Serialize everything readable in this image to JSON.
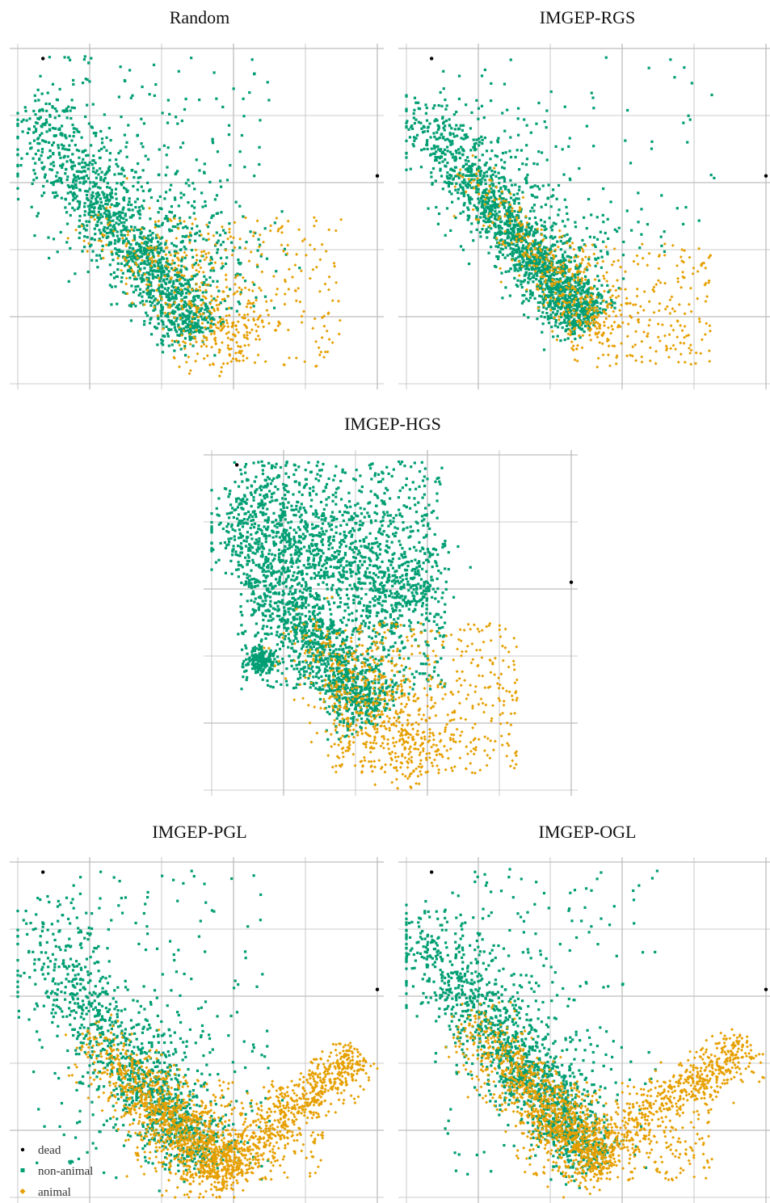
{
  "colors": {
    "dead": "#000000",
    "non_animal": "#009e73",
    "animal": "#e69f00",
    "grid": "#bdbdbd"
  },
  "legend": {
    "position": "bottom-left",
    "items": [
      {
        "key": "dead",
        "label": "dead"
      },
      {
        "key": "non_animal",
        "label": "non-animal"
      },
      {
        "key": "animal",
        "label": "animal"
      }
    ]
  },
  "chart_data": [
    {
      "type": "scatter",
      "title": "Random",
      "xlim": [
        0,
        1
      ],
      "ylim": [
        0,
        1
      ],
      "grid": true,
      "tick_labels": false,
      "series": [
        {
          "name": "dead",
          "points": [
            [
              0.07,
              0.97
            ],
            [
              1.0,
              0.62
            ]
          ]
        },
        {
          "name": "non-animal",
          "method": "clusters",
          "count": 1700,
          "clusters": [
            {
              "w": 0.62,
              "line": [
                [
                  0.0,
                  0.85
                ],
                [
                  0.5,
                  0.15
                ]
              ],
              "spread": 0.045,
              "bias": 0.55
            },
            {
              "w": 0.3,
              "line": [
                [
                  0.02,
                  0.84
                ],
                [
                  0.62,
                  0.25
                ]
              ],
              "spread": 0.1,
              "bias": 0.9
            },
            {
              "w": 0.08,
              "rect": [
                0.05,
                0.35,
                0.7,
                0.98
              ]
            }
          ]
        },
        {
          "name": "animal",
          "method": "clusters",
          "count": 550,
          "clusters": [
            {
              "w": 0.55,
              "line": [
                [
                  0.18,
                  0.55
                ],
                [
                  0.65,
                  0.1
                ]
              ],
              "spread": 0.06,
              "bias": 0.6
            },
            {
              "w": 0.45,
              "rect": [
                0.42,
                0.05,
                0.9,
                0.5
              ]
            }
          ]
        }
      ]
    },
    {
      "type": "scatter",
      "title": "IMGEP-RGS",
      "xlim": [
        0,
        1
      ],
      "ylim": [
        0,
        1
      ],
      "grid": true,
      "tick_labels": false,
      "series": [
        {
          "name": "dead",
          "points": [
            [
              0.07,
              0.97
            ],
            [
              1.0,
              0.62
            ]
          ]
        },
        {
          "name": "non-animal",
          "method": "clusters",
          "count": 1900,
          "clusters": [
            {
              "w": 0.75,
              "line": [
                [
                  0.0,
                  0.85
                ],
                [
                  0.5,
                  0.18
                ]
              ],
              "spread": 0.04,
              "bias": 0.5
            },
            {
              "w": 0.2,
              "line": [
                [
                  0.04,
                  0.83
                ],
                [
                  0.55,
                  0.28
                ]
              ],
              "spread": 0.08,
              "bias": 0.9
            },
            {
              "w": 0.05,
              "rect": [
                0.1,
                0.4,
                0.9,
                0.98
              ]
            }
          ]
        },
        {
          "name": "animal",
          "method": "clusters",
          "count": 600,
          "clusters": [
            {
              "w": 0.55,
              "line": [
                [
                  0.15,
                  0.65
                ],
                [
                  0.55,
                  0.15
                ]
              ],
              "spread": 0.04,
              "bias": 0.6
            },
            {
              "w": 0.45,
              "rect": [
                0.45,
                0.05,
                0.85,
                0.42
              ]
            }
          ]
        }
      ]
    },
    {
      "type": "scatter",
      "title": "IMGEP-HGS",
      "xlim": [
        0,
        1
      ],
      "ylim": [
        0,
        1
      ],
      "grid": true,
      "tick_labels": false,
      "series": [
        {
          "name": "dead",
          "points": [
            [
              0.07,
              0.97
            ],
            [
              1.0,
              0.62
            ]
          ]
        },
        {
          "name": "non-animal",
          "method": "clusters",
          "count": 3000,
          "clusters": [
            {
              "w": 0.35,
              "line": [
                [
                  0.0,
                  0.85
                ],
                [
                  0.45,
                  0.22
                ]
              ],
              "spread": 0.05,
              "bias": 0.5
            },
            {
              "w": 0.3,
              "line": [
                [
                  0.05,
                  0.87
                ],
                [
                  0.6,
                  0.55
                ]
              ],
              "spread": 0.08,
              "bias": 0.9
            },
            {
              "w": 0.3,
              "rect": [
                0.08,
                0.3,
                0.65,
                0.98
              ]
            },
            {
              "w": 0.05,
              "line": [
                [
                  0.13,
                  0.42
                ],
                [
                  0.15,
                  0.36
                ]
              ],
              "spread": 0.02,
              "bias": 1.0
            }
          ]
        },
        {
          "name": "animal",
          "method": "clusters",
          "count": 900,
          "clusters": [
            {
              "w": 0.5,
              "line": [
                [
                  0.2,
                  0.52
                ],
                [
                  0.6,
                  0.08
                ]
              ],
              "spread": 0.07,
              "bias": 0.6
            },
            {
              "w": 0.5,
              "rect": [
                0.33,
                0.05,
                0.85,
                0.5
              ]
            }
          ]
        }
      ]
    },
    {
      "type": "scatter",
      "title": "IMGEP-PGL",
      "xlim": [
        0,
        1
      ],
      "ylim": [
        0,
        1
      ],
      "grid": true,
      "tick_labels": false,
      "series": [
        {
          "name": "dead",
          "points": [
            [
              0.07,
              0.97
            ],
            [
              1.0,
              0.62
            ]
          ]
        },
        {
          "name": "non-animal",
          "method": "clusters",
          "count": 1300,
          "clusters": [
            {
              "w": 0.55,
              "line": [
                [
                  0.0,
                  0.85
                ],
                [
                  0.52,
                  0.1
                ]
              ],
              "spread": 0.05,
              "bias": 0.5
            },
            {
              "w": 0.3,
              "line": [
                [
                  0.02,
                  0.83
                ],
                [
                  0.5,
                  0.2
                ]
              ],
              "spread": 0.1,
              "bias": 0.9
            },
            {
              "w": 0.15,
              "rect": [
                0.05,
                0.05,
                0.7,
                0.98
              ]
            }
          ]
        },
        {
          "name": "animal",
          "method": "clusters",
          "count": 2000,
          "clusters": [
            {
              "w": 0.55,
              "line": [
                [
                  0.18,
                  0.5
                ],
                [
                  0.6,
                  0.05
                ]
              ],
              "spread": 0.05,
              "bias": 0.6
            },
            {
              "w": 0.3,
              "line": [
                [
                  0.55,
                  0.08
                ],
                [
                  0.95,
                  0.42
                ]
              ],
              "spread": 0.035,
              "bias": 0.7
            },
            {
              "w": 0.15,
              "rect": [
                0.3,
                0.05,
                0.85,
                0.35
              ]
            }
          ]
        }
      ]
    },
    {
      "type": "scatter",
      "title": "IMGEP-OGL",
      "xlim": [
        0,
        1
      ],
      "ylim": [
        0,
        1
      ],
      "grid": true,
      "tick_labels": false,
      "series": [
        {
          "name": "dead",
          "points": [
            [
              0.07,
              0.97
            ],
            [
              1.0,
              0.62
            ]
          ]
        },
        {
          "name": "non-animal",
          "method": "clusters",
          "count": 1600,
          "clusters": [
            {
              "w": 0.6,
              "line": [
                [
                  0.0,
                  0.85
                ],
                [
                  0.52,
                  0.1
                ]
              ],
              "spread": 0.045,
              "bias": 0.5
            },
            {
              "w": 0.3,
              "line": [
                [
                  0.02,
                  0.83
                ],
                [
                  0.5,
                  0.25
                ]
              ],
              "spread": 0.09,
              "bias": 0.9
            },
            {
              "w": 0.1,
              "rect": [
                0.1,
                0.05,
                0.7,
                0.98
              ]
            }
          ]
        },
        {
          "name": "animal",
          "method": "clusters",
          "count": 1800,
          "clusters": [
            {
              "w": 0.55,
              "line": [
                [
                  0.15,
                  0.55
                ],
                [
                  0.55,
                  0.08
                ]
              ],
              "spread": 0.05,
              "bias": 0.6
            },
            {
              "w": 0.3,
              "line": [
                [
                  0.5,
                  0.12
                ],
                [
                  0.95,
                  0.45
                ]
              ],
              "spread": 0.04,
              "bias": 0.7
            },
            {
              "w": 0.15,
              "rect": [
                0.3,
                0.05,
                0.85,
                0.35
              ]
            }
          ]
        }
      ]
    }
  ]
}
